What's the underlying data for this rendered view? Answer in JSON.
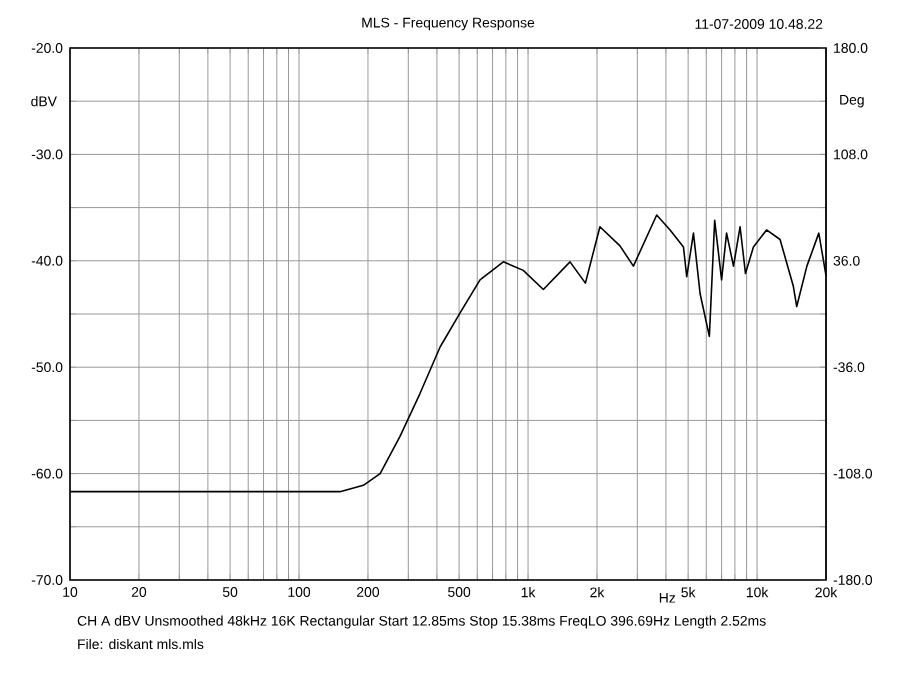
{
  "chart_data": {
    "type": "line",
    "title": "MLS - Frequency Response",
    "xlabel": "Hz",
    "ylabel": "dBV",
    "y2label": "Deg",
    "annotations": [
      "11-07-2009 10.48.22",
      "CH A   dBV   Unsmoothed   48kHz   16K   Rectangular   Start 12.85ms   Stop 15.38ms   FreqLO 396.69Hz   Length 2.52ms",
      "File: diskant mls.mls"
    ],
    "log": "x",
    "grid": true,
    "xlim": [
      10,
      20000
    ],
    "ylim": [
      -70,
      -20
    ],
    "y2lim": [
      -180,
      180
    ],
    "xticks": [
      10,
      20,
      {
        "value": 30,
        "label": null
      },
      {
        "value": 40,
        "label": null
      },
      50,
      {
        "value": 60,
        "label": null
      },
      {
        "value": 70,
        "label": null
      },
      {
        "value": 80,
        "label": null
      },
      {
        "value": 90,
        "label": null
      },
      100,
      200,
      {
        "value": 300,
        "label": null
      },
      {
        "value": 400,
        "label": null
      },
      500,
      {
        "value": 600,
        "label": null
      },
      {
        "value": 700,
        "label": null
      },
      {
        "value": 800,
        "label": null
      },
      {
        "value": 900,
        "label": null
      },
      {
        "value": 1000,
        "label": "1k"
      },
      {
        "value": 2000,
        "label": "2k"
      },
      {
        "value": 3000,
        "label": null
      },
      {
        "value": 4000,
        "label": null
      },
      {
        "value": 5000,
        "label": "5k"
      },
      {
        "value": 6000,
        "label": null
      },
      {
        "value": 7000,
        "label": null
      },
      {
        "value": 8000,
        "label": null
      },
      {
        "value": 9000,
        "label": null
      },
      {
        "value": 10000,
        "label": "10k"
      },
      {
        "value": 20000,
        "label": "20k"
      }
    ],
    "yticks": [
      {
        "value": -70,
        "label": "-70.0"
      },
      {
        "value": -65,
        "label": null
      },
      {
        "value": -60,
        "label": "-60.0"
      },
      {
        "value": -55,
        "label": null
      },
      {
        "value": -50,
        "label": "-50.0"
      },
      {
        "value": -45,
        "label": null
      },
      {
        "value": -40,
        "label": "-40.0"
      },
      {
        "value": -35,
        "label": null
      },
      {
        "value": -30,
        "label": "-30.0"
      },
      {
        "value": -25,
        "label": null
      },
      {
        "value": -20,
        "label": "-20.0"
      }
    ],
    "y2ticks": [
      {
        "value": -180,
        "label": "-180.0"
      },
      {
        "value": -108,
        "label": "-108.0"
      },
      {
        "value": -36,
        "label": "-36.0"
      },
      {
        "value": 36,
        "label": "36.0"
      },
      {
        "value": 108,
        "label": "108.0"
      },
      {
        "value": 180,
        "label": "180.0"
      }
    ],
    "x": [
      10,
      151,
      191,
      226,
      276,
      337,
      413,
      505,
      617,
      780,
      953,
      1166,
      1525,
      1780,
      2060,
      2520,
      2884,
      3645,
      4170,
      4770,
      4930,
      5275,
      5640,
      6190,
      6530,
      7000,
      7360,
      7890,
      8430,
      8900,
      9640,
      11000,
      12600,
      14400,
      14900,
      16500,
      18600,
      20000
    ],
    "series": [
      {
        "color": "#000000",
        "values": [
          -61.7,
          -61.7,
          -61.1,
          -60.0,
          -56.5,
          -52.5,
          -48.1,
          -44.9,
          -41.8,
          -40.1,
          -40.9,
          -42.7,
          -40.1,
          -42.1,
          -36.8,
          -38.6,
          -40.5,
          -35.7,
          -37.1,
          -38.7,
          -41.5,
          -37.4,
          -43.1,
          -47.1,
          -36.2,
          -41.8,
          -37.4,
          -40.5,
          -36.8,
          -41.2,
          -38.7,
          -37.1,
          -38.0,
          -42.4,
          -44.3,
          -40.5,
          -37.4,
          -41.4
        ]
      }
    ]
  }
}
